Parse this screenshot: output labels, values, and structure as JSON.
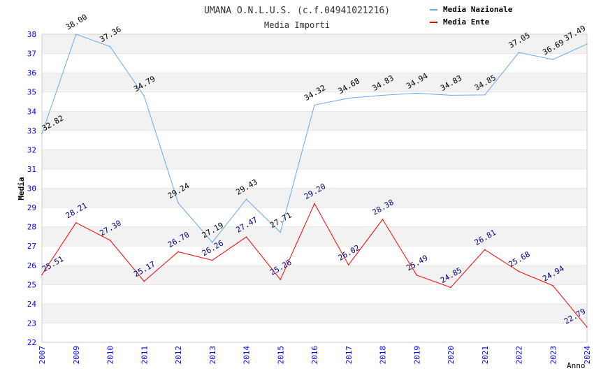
{
  "chart_data": {
    "type": "line",
    "title": "UMANA O.N.L.U.S. (c.f.04941021216)",
    "subtitle": "Media Importi",
    "xlabel": "Anno",
    "ylabel": "Media",
    "ylim": [
      22,
      38
    ],
    "yticks": [
      "22",
      "23",
      "24",
      "25",
      "26",
      "27",
      "28",
      "29",
      "30",
      "31",
      "32",
      "33",
      "34",
      "35",
      "36",
      "37",
      "38"
    ],
    "categories": [
      "2007",
      "2009",
      "2010",
      "2011",
      "2012",
      "2013",
      "2014",
      "2015",
      "2016",
      "2017",
      "2018",
      "2019",
      "2020",
      "2021",
      "2022",
      "2023",
      "2024"
    ],
    "legend_position": "top-right",
    "series": [
      {
        "name": "Media Nazionale",
        "color": "#66aaee",
        "label_color": "#000000",
        "values": [
          32.82,
          38.0,
          37.36,
          34.79,
          29.24,
          27.19,
          29.43,
          27.71,
          34.32,
          34.68,
          34.83,
          34.94,
          34.83,
          34.85,
          37.05,
          36.69,
          37.49
        ],
        "labels": [
          "32.82",
          "38.00",
          "37.36",
          "34.79",
          "29.24",
          "27.19",
          "29.43",
          "27.71",
          "34.32",
          "34.68",
          "34.83",
          "34.94",
          "34.83",
          "34.85",
          "37.05",
          "36.69",
          "37.49"
        ]
      },
      {
        "name": "Media Ente",
        "color": "#ff0000",
        "label_color": "#000080",
        "values": [
          25.51,
          28.21,
          27.3,
          25.17,
          26.7,
          26.26,
          27.47,
          25.26,
          29.2,
          26.02,
          28.38,
          25.49,
          24.85,
          26.81,
          25.68,
          24.94,
          22.79
        ],
        "labels": [
          "25.51",
          "28.21",
          "27.30",
          "25.17",
          "26.70",
          "26.26",
          "27.47",
          "25.26",
          "29.20",
          "26.02",
          "28.38",
          "25.49",
          "24.85",
          "26.81",
          "25.68",
          "24.94",
          "22.79"
        ]
      }
    ]
  }
}
